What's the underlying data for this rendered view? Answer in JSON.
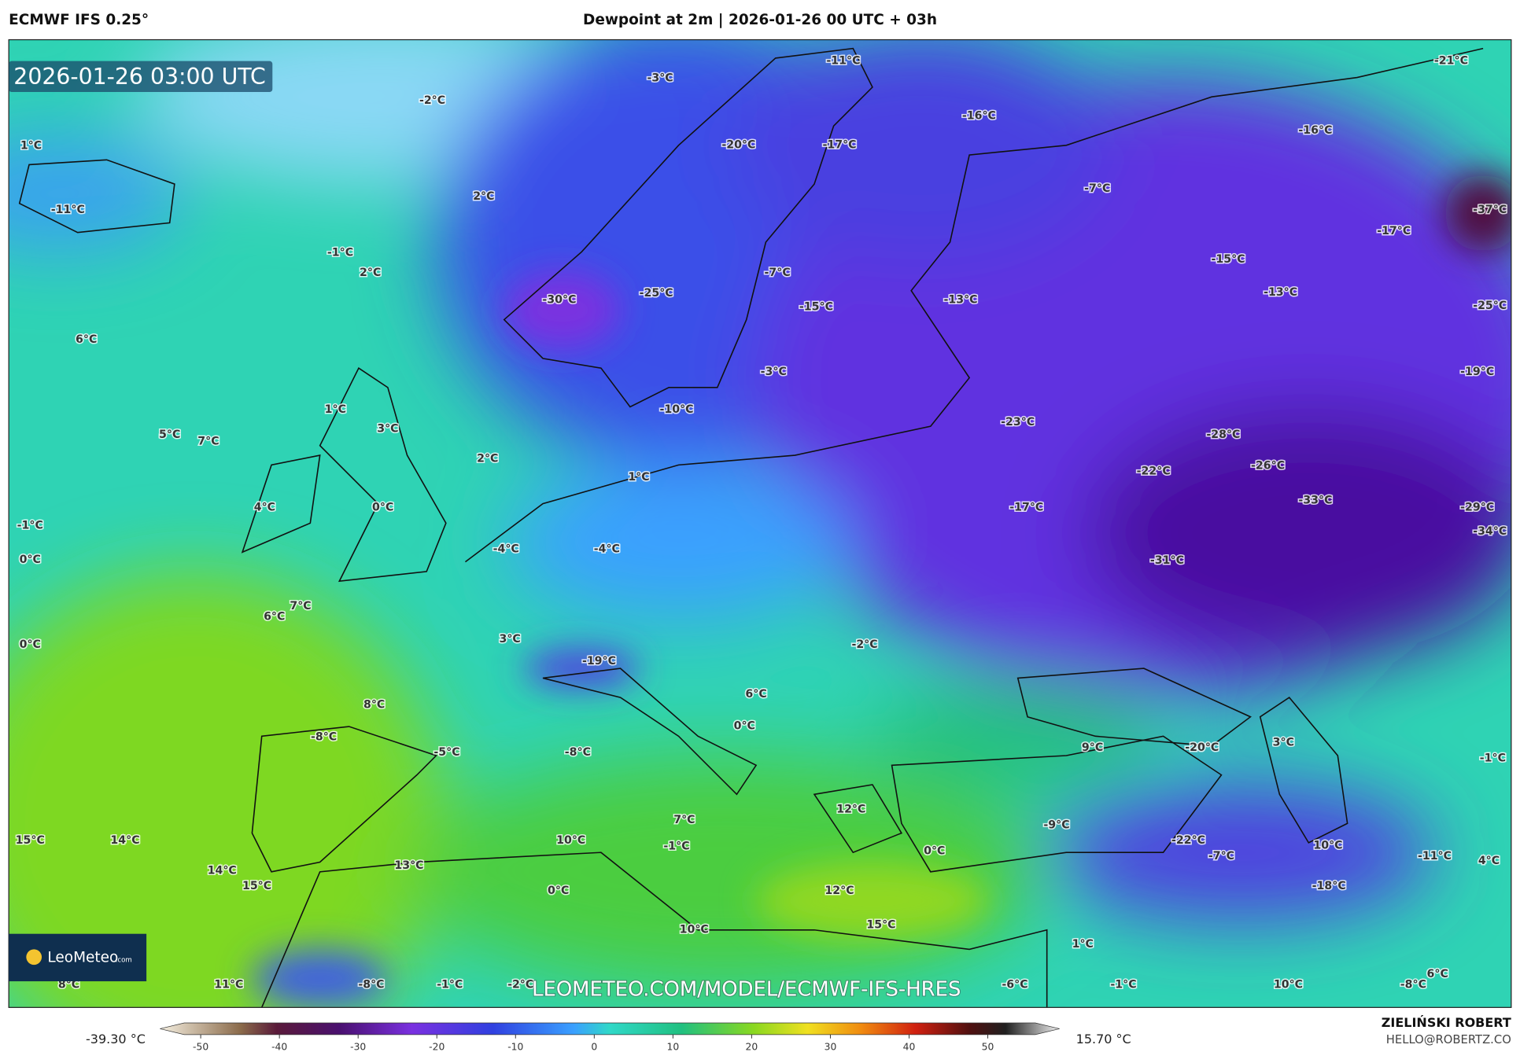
{
  "header": {
    "model": "ECMWF IFS 0.25°",
    "title": "Dewpoint at 2m | 2026-01-26 00 UTC + 03h"
  },
  "map": {
    "timestamp": "2026-01-26 03:00 UTC",
    "watermark": "LEOMETEO.COM/MODEL/ECMWF-IFS-HRES",
    "logo": {
      "brand": "LeoMeteo",
      "suffix": ".com"
    },
    "labels": [
      "-3°C",
      "-11°C",
      "-21°C",
      "-2°C",
      "1°C",
      "-16°C",
      "-16°C",
      "-20°C",
      "-17°C",
      "-11°C",
      "2°C",
      "-7°C",
      "-37°C",
      "-17°C",
      "-1°C",
      "2°C",
      "-15°C",
      "-25°C",
      "-30°C",
      "-7°C",
      "-13°C",
      "-15°C",
      "-13°C",
      "-25°C",
      "6°C",
      "-3°C",
      "-19°C",
      "1°C",
      "3°C",
      "-10°C",
      "-23°C",
      "-28°C",
      "5°C",
      "7°C",
      "2°C",
      "1°C",
      "-22°C",
      "-26°C",
      "-33°C",
      "-29°C",
      "4°C",
      "0°C",
      "-17°C",
      "-34°C",
      "-1°C",
      "-4°C",
      "-4°C",
      "-31°C",
      "0°C",
      "7°C",
      "6°C",
      "0°C",
      "3°C",
      "-2°C",
      "-19°C",
      "8°C",
      "6°C",
      "0°C",
      "-8°C",
      "-5°C",
      "-8°C",
      "9°C",
      "-20°C",
      "3°C",
      "-1°C",
      "12°C",
      "-9°C",
      "15°C",
      "14°C",
      "10°C",
      "7°C",
      "-1°C",
      "-22°C",
      "-7°C",
      "10°C",
      "-11°C",
      "4°C",
      "0°C",
      "13°C",
      "14°C",
      "15°C",
      "0°C",
      "12°C",
      "-18°C",
      "15°C",
      "10°C",
      "1°C",
      "6°C",
      "8°C",
      "11°C",
      "-8°C",
      "-1°C",
      "-2°C",
      "-6°C",
      "-1°C",
      "10°C",
      "-8°C"
    ]
  },
  "colorbar": {
    "min_label": "-39.30 °C",
    "max_label": "15.70 °C",
    "ticks": [
      -50,
      -40,
      -30,
      -20,
      -10,
      0,
      10,
      20,
      30,
      40,
      50
    ]
  },
  "footer": {
    "author": "ZIELIŃSKI ROBERT",
    "email": "HELLO@ROBERTZ.CO"
  }
}
